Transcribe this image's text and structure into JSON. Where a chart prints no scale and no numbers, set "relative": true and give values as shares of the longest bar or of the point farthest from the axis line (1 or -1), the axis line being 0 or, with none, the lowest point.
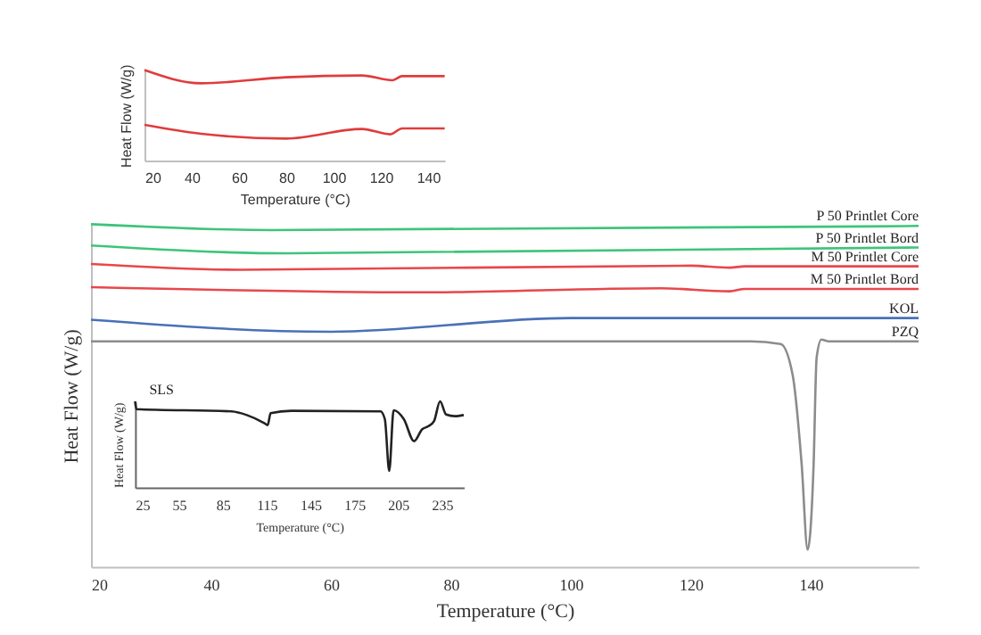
{
  "chart_data": [
    {
      "type": "line",
      "xlabel": "Temperature (°C)",
      "ylabel": "Heat Flow (W/g)",
      "relative": true,
      "xlim": [
        20,
        158
      ],
      "xticks": [
        20,
        40,
        60,
        80,
        100,
        120,
        140
      ],
      "series": [
        {
          "name": "P 50 Printlet Core",
          "color": "#3ec47a",
          "x": [
            20,
            50,
            158
          ],
          "values": [
            1.0,
            0.983,
            0.995
          ]
        },
        {
          "name": "P 50 Printlet Bord",
          "color": "#3ec47a",
          "x": [
            20,
            53,
            158
          ],
          "values": [
            0.938,
            0.915,
            0.932
          ]
        },
        {
          "name": "M 50 Printlet Core",
          "color": "#e8474c",
          "x": [
            20,
            45,
            120,
            126.5,
            129,
            158
          ],
          "values": [
            0.884,
            0.867,
            0.879,
            0.873,
            0.877,
            0.877
          ]
        },
        {
          "name": "M 50 Printlet Bord",
          "color": "#e8474c",
          "x": [
            20,
            75,
            115,
            126.5,
            129,
            158
          ],
          "values": [
            0.816,
            0.801,
            0.813,
            0.804,
            0.811,
            0.811
          ]
        },
        {
          "name": "KOL",
          "color": "#4a70b8",
          "x": [
            20,
            60,
            100,
            158
          ],
          "values": [
            0.721,
            0.686,
            0.726,
            0.726
          ]
        },
        {
          "name": "PZQ",
          "color": "#8c8c8c",
          "x": [
            20,
            130,
            135,
            137,
            138.5,
            139.5,
            140.5,
            141,
            141.8,
            143,
            158
          ],
          "values": [
            0.658,
            0.658,
            0.65,
            0.56,
            0.3,
            0.05,
            0.3,
            0.61,
            0.663,
            0.658,
            0.658
          ]
        }
      ]
    },
    {
      "type": "line",
      "xlabel": "Temperature (°C)",
      "ylabel": "Heat Flow (W/g)",
      "relative": true,
      "xlim": [
        20,
        147
      ],
      "xticks": [
        20,
        40,
        60,
        80,
        100,
        120,
        140
      ],
      "series": [
        {
          "color": "#e03c3c",
          "x": [
            20,
            44,
            80,
            112,
            125,
            129,
            147
          ],
          "values": [
            1.0,
            0.854,
            0.921,
            0.941,
            0.888,
            0.933,
            0.933
          ]
        },
        {
          "color": "#e03c3c",
          "x": [
            20,
            44,
            80,
            112,
            124,
            129,
            147
          ],
          "values": [
            0.394,
            0.296,
            0.243,
            0.349,
            0.29,
            0.355,
            0.355
          ]
        }
      ]
    },
    {
      "type": "line",
      "title": "SLS",
      "xlabel": "Temperature (°C)",
      "ylabel": "Heat Flow (W/g)",
      "relative": true,
      "xlim": [
        25,
        250
      ],
      "xticks": [
        25,
        55,
        85,
        115,
        145,
        175,
        205,
        235
      ],
      "series": [
        {
          "color": "#222222",
          "x": [
            25,
            26,
            91,
            101.5,
            113.7,
            115.8,
            117.8,
            132,
            193,
            196,
            199,
            202,
            209,
            216,
            221.6,
            225.6,
            229.7,
            233.8,
            237.9,
            244,
            250
          ],
          "values": [
            1.0,
            0.91,
            0.883,
            0.841,
            0.745,
            0.724,
            0.862,
            0.89,
            0.883,
            0.793,
            0.193,
            0.897,
            0.793,
            0.538,
            0.676,
            0.71,
            0.772,
            1.0,
            0.848,
            0.828,
            0.841
          ]
        }
      ]
    }
  ]
}
